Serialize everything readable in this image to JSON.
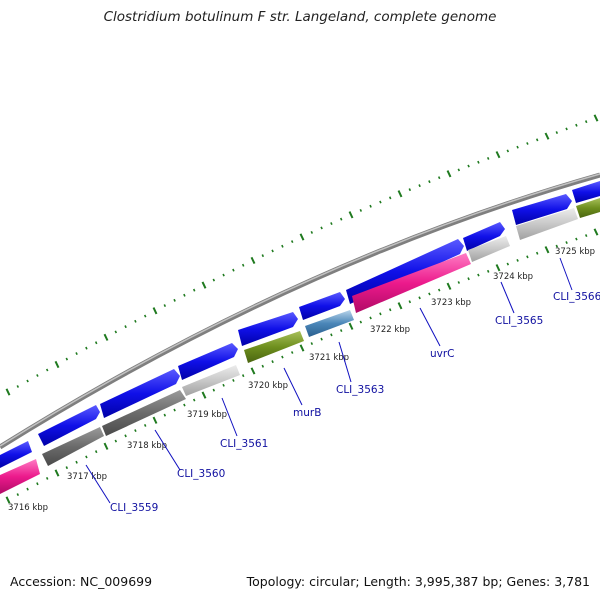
{
  "title": "Clostridium botulinum F str. Langeland, complete genome",
  "footer": {
    "accession": "Accession: NC_009699",
    "summary": "Topology: circular; Length: 3,995,387 bp; Genes: 3,781"
  },
  "colors": {
    "cds": "#1010e0",
    "rna_pink": "#e8198a",
    "olive": "#6e8f1e",
    "grey_dark": "#6b6b6b",
    "grey_light": "#c8c8c8",
    "steel": "#4a86b8",
    "backbone": "#8a8a8a",
    "tick": "#1f7a1f",
    "label": "#1010a0"
  },
  "kbp_labels": [
    "3716 kbp",
    "3717 kbp",
    "3718 kbp",
    "3719 kbp",
    "3720 kbp",
    "3721 kbp",
    "3722 kbp",
    "3723 kbp",
    "3724 kbp",
    "3725 kbp"
  ],
  "gene_labels": [
    "CLI_3559",
    "CLI_3560",
    "CLI_3561",
    "murB",
    "CLI_3563",
    "uvrC",
    "CLI_3565",
    "CLI_3566"
  ]
}
